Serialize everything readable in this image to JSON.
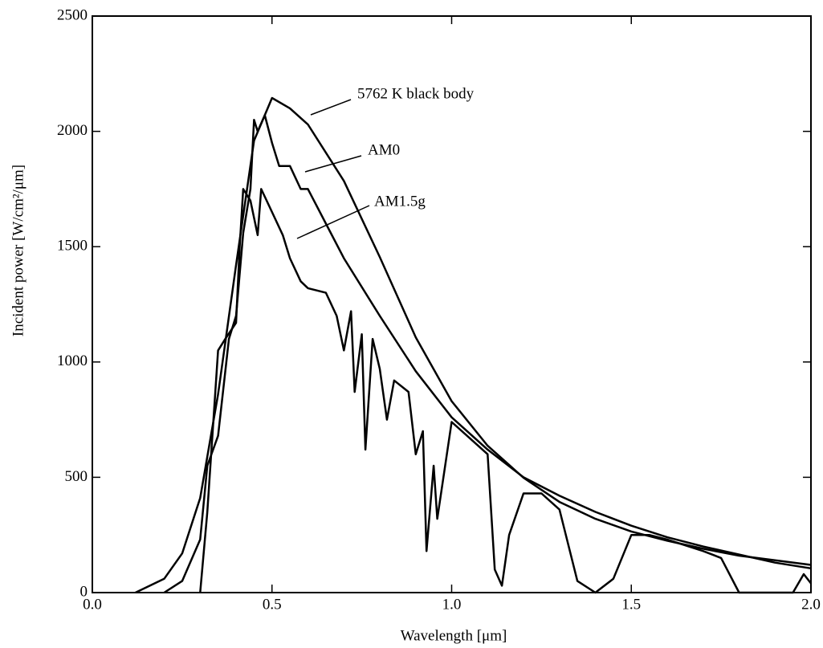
{
  "chart_data": {
    "type": "line",
    "xlabel": "Wavelength  [μm]",
    "ylabel": "Incident power  [W/cm²/μm]",
    "xlim": [
      0,
      2
    ],
    "ylim": [
      0,
      2500
    ],
    "xticks": [
      {
        "value": 0,
        "label": "0.0"
      },
      0.5,
      {
        "value": 1,
        "label": "1.0"
      },
      1.5,
      {
        "value": 2,
        "label": "2.0"
      }
    ],
    "yticks": [
      0,
      500,
      1000,
      1500,
      2000,
      2500
    ],
    "annotations": [
      "5762 K black body",
      "AM0",
      "AM1.5g"
    ],
    "series": [
      {
        "name": "5762 K black body",
        "color": "#000000",
        "x": [
          0.12,
          0.2,
          0.25,
          0.3,
          0.35,
          0.4,
          0.45,
          0.5,
          0.55,
          0.6,
          0.7,
          0.8,
          0.9,
          1.0,
          1.1,
          1.2,
          1.3,
          1.4,
          1.5,
          1.6,
          1.7,
          1.8,
          1.9,
          2.0
        ],
        "values": [
          0,
          60,
          170,
          410,
          860,
          1420,
          1960,
          2145,
          2100,
          2030,
          1785,
          1455,
          1107,
          830,
          637,
          498,
          393,
          320,
          265,
          225,
          190,
          160,
          140,
          120
        ]
      },
      {
        "name": "AM0",
        "color": "#000000",
        "x": [
          0.2,
          0.25,
          0.3,
          0.32,
          0.35,
          0.38,
          0.4,
          0.42,
          0.44,
          0.45,
          0.46,
          0.48,
          0.5,
          0.52,
          0.55,
          0.58,
          0.6,
          0.65,
          0.7,
          0.8,
          0.9,
          1.0,
          1.1,
          1.2,
          1.3,
          1.4,
          1.5,
          1.6,
          1.7,
          1.8,
          1.9,
          2.0
        ],
        "values": [
          0,
          50,
          230,
          550,
          680,
          1100,
          1200,
          1560,
          1750,
          2050,
          2000,
          2070,
          1950,
          1850,
          1850,
          1750,
          1750,
          1600,
          1450,
          1200,
          960,
          760,
          620,
          500,
          420,
          350,
          290,
          240,
          200,
          165,
          130,
          105
        ]
      },
      {
        "name": "AM1.5g",
        "color": "#000000",
        "x": [
          0.3,
          0.32,
          0.35,
          0.37,
          0.4,
          0.41,
          0.42,
          0.44,
          0.46,
          0.47,
          0.5,
          0.53,
          0.55,
          0.58,
          0.6,
          0.65,
          0.68,
          0.7,
          0.72,
          0.73,
          0.75,
          0.76,
          0.78,
          0.8,
          0.82,
          0.84,
          0.88,
          0.9,
          0.92,
          0.93,
          0.95,
          0.96,
          1.0,
          1.05,
          1.1,
          1.12,
          1.14,
          1.16,
          1.2,
          1.25,
          1.3,
          1.35,
          1.4,
          1.45,
          1.5,
          1.55,
          1.6,
          1.7,
          1.75,
          1.8,
          1.95,
          1.98,
          2.0
        ],
        "values": [
          0,
          350,
          1050,
          1100,
          1170,
          1500,
          1750,
          1700,
          1550,
          1750,
          1650,
          1550,
          1450,
          1350,
          1320,
          1300,
          1200,
          1050,
          1220,
          870,
          1120,
          620,
          1100,
          970,
          750,
          920,
          870,
          600,
          700,
          180,
          550,
          320,
          740,
          670,
          600,
          100,
          30,
          250,
          430,
          430,
          360,
          50,
          0,
          60,
          250,
          250,
          230,
          180,
          150,
          0,
          0,
          80,
          40
        ]
      }
    ]
  }
}
